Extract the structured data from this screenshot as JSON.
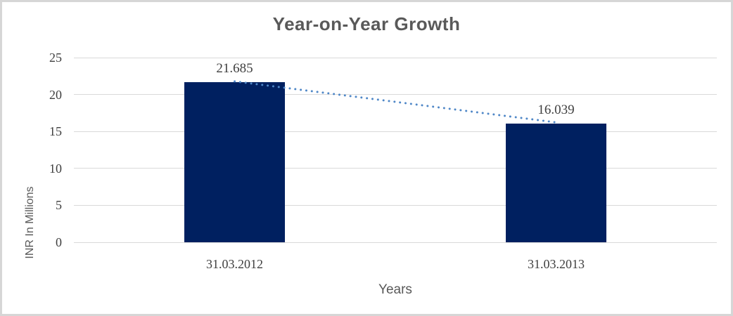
{
  "window": {
    "background_color": "#ffffff",
    "border_color": "#d6d6d6"
  },
  "chart_data": {
    "type": "bar",
    "title": "Year-on-Year Growth",
    "categories": [
      "31.03.2012",
      "31.03.2013"
    ],
    "values": [
      21.685,
      16.039
    ],
    "data_labels": [
      "21.685",
      "16.039"
    ],
    "xlabel": "Years",
    "ylabel": "INR In Millions",
    "ylim": [
      0,
      25
    ],
    "yticks": [
      0,
      5,
      10,
      15,
      20,
      25
    ],
    "ytick_labels": [
      "0",
      "5",
      "10",
      "15",
      "20",
      "25"
    ],
    "grid": true,
    "legend_position": "none",
    "colors": {
      "bar": "#002060",
      "trendline": "#4f87c7",
      "gridline": "#d9d9d9",
      "title_text": "#595959",
      "axis_title_text": "#595959",
      "tick_text": "#3f3f3f"
    },
    "trendline": {
      "type": "linear",
      "style": "dotted",
      "color": "#4f87c7",
      "points": [
        [
          0,
          21.685
        ],
        [
          1,
          16.039
        ]
      ]
    }
  }
}
